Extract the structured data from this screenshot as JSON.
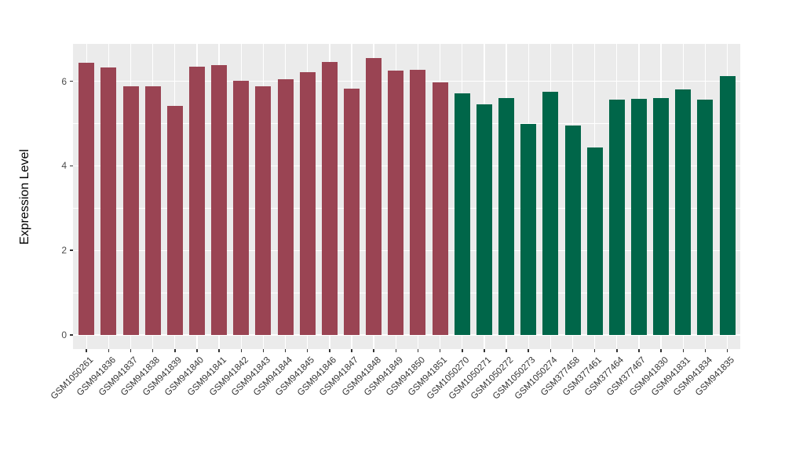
{
  "chart_data": {
    "type": "bar",
    "title": "",
    "xlabel": "",
    "ylabel": "Expression Level",
    "ylim": [
      0,
      6.9
    ],
    "ytick_major": [
      0,
      2,
      4,
      6
    ],
    "ytick_minor": [
      1,
      3,
      5
    ],
    "ytick_labels": [
      "0",
      "2",
      "4",
      "6"
    ],
    "grid": "on",
    "legend_position": "none",
    "panel_background": "#EBEBEB",
    "gridline_color": "#FFFFFF",
    "group_colors": {
      "group1": "#9A4453",
      "group2": "#006649"
    },
    "categories": [
      "GSM1050261",
      "GSM941836",
      "GSM941837",
      "GSM941838",
      "GSM941839",
      "GSM941840",
      "GSM941841",
      "GSM941842",
      "GSM941843",
      "GSM941844",
      "GSM941845",
      "GSM941846",
      "GSM941847",
      "GSM941848",
      "GSM941849",
      "GSM941850",
      "GSM941851",
      "GSM1050270",
      "GSM1050271",
      "GSM1050272",
      "GSM1050273",
      "GSM1050274",
      "GSM377458",
      "GSM377461",
      "GSM377464",
      "GSM377467",
      "GSM941830",
      "GSM941831",
      "GSM941834",
      "GSM941835"
    ],
    "values": [
      6.44,
      6.33,
      5.88,
      5.89,
      5.42,
      6.34,
      6.39,
      6.02,
      5.89,
      6.05,
      6.22,
      6.46,
      5.83,
      6.54,
      6.26,
      6.28,
      5.97,
      5.71,
      5.45,
      5.6,
      5.0,
      5.75,
      4.95,
      4.43,
      5.56,
      5.58,
      5.61,
      5.81,
      5.57,
      6.13
    ],
    "bar_groups": [
      "group1",
      "group1",
      "group1",
      "group1",
      "group1",
      "group1",
      "group1",
      "group1",
      "group1",
      "group1",
      "group1",
      "group1",
      "group1",
      "group1",
      "group1",
      "group1",
      "group1",
      "group2",
      "group2",
      "group2",
      "group2",
      "group2",
      "group2",
      "group2",
      "group2",
      "group2",
      "group2",
      "group2",
      "group2",
      "group2"
    ]
  }
}
